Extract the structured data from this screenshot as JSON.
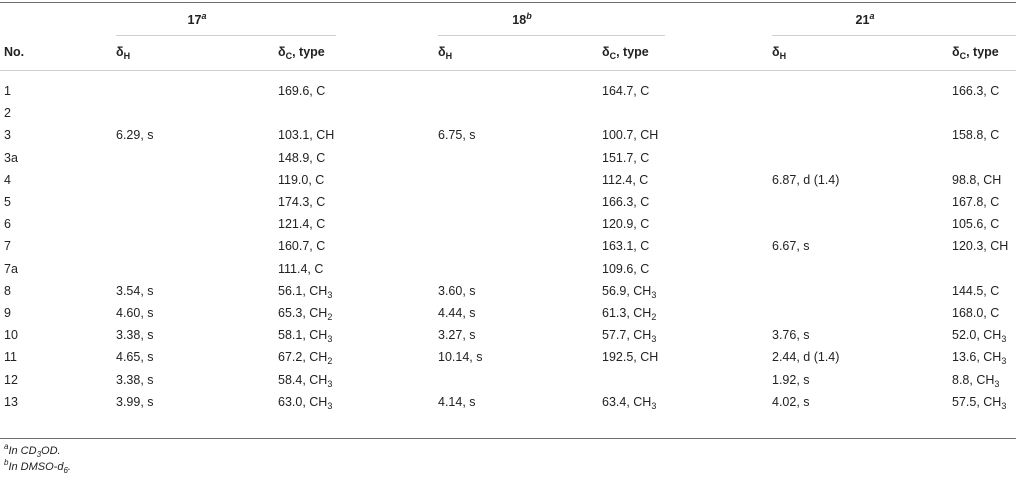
{
  "compounds": [
    {
      "number": "17",
      "footnote_mark": "a"
    },
    {
      "number": "18",
      "footnote_mark": "b"
    },
    {
      "number": "21",
      "footnote_mark": "a"
    }
  ],
  "headers": {
    "no": "No.",
    "dH": {
      "symbol": "δ",
      "sub": "H"
    },
    "dC": {
      "symbol": "δ",
      "sub": "C",
      "suffix": ", type"
    }
  },
  "rows": [
    {
      "no": "1",
      "cells": [
        [
          "",
          "169.6, C"
        ],
        [
          "",
          "164.7, C"
        ],
        [
          "",
          "166.3, C"
        ]
      ]
    },
    {
      "no": "2",
      "cells": [
        [
          "",
          ""
        ],
        [
          "",
          ""
        ],
        [
          "",
          ""
        ]
      ]
    },
    {
      "no": "3",
      "cells": [
        [
          "6.29, s",
          "103.1, CH"
        ],
        [
          "6.75, s",
          "100.7, CH"
        ],
        [
          "",
          "158.8, C"
        ]
      ]
    },
    {
      "no": "3a",
      "cells": [
        [
          "",
          "148.9, C"
        ],
        [
          "",
          "151.7, C"
        ],
        [
          "",
          ""
        ]
      ]
    },
    {
      "no": "4",
      "cells": [
        [
          "",
          "119.0, C"
        ],
        [
          "",
          "112.4, C"
        ],
        [
          "6.87, d (1.4)",
          "98.8, CH"
        ]
      ]
    },
    {
      "no": "5",
      "cells": [
        [
          "",
          "174.3, C"
        ],
        [
          "",
          "166.3, C"
        ],
        [
          "",
          "167.8, C"
        ]
      ]
    },
    {
      "no": "6",
      "cells": [
        [
          "",
          "121.4, C"
        ],
        [
          "",
          "120.9, C"
        ],
        [
          "",
          "105.6, C"
        ]
      ]
    },
    {
      "no": "7",
      "cells": [
        [
          "",
          "160.7, C"
        ],
        [
          "",
          "163.1, C"
        ],
        [
          "6.67, s",
          "120.3, CH"
        ]
      ]
    },
    {
      "no": "7a",
      "cells": [
        [
          "",
          "111.4, C"
        ],
        [
          "",
          "109.6, C"
        ],
        [
          "",
          ""
        ]
      ]
    },
    {
      "no": "8",
      "cells": [
        [
          "3.54, s",
          "56.1, CH3"
        ],
        [
          "3.60, s",
          "56.9, CH3"
        ],
        [
          "",
          "144.5, C"
        ]
      ]
    },
    {
      "no": "9",
      "cells": [
        [
          "4.60, s",
          "65.3, CH2"
        ],
        [
          "4.44, s",
          "61.3, CH2"
        ],
        [
          "",
          "168.0, C"
        ]
      ]
    },
    {
      "no": "10",
      "cells": [
        [
          "3.38, s",
          "58.1, CH3"
        ],
        [
          "3.27, s",
          "57.7, CH3"
        ],
        [
          "3.76, s",
          "52.0, CH3"
        ]
      ]
    },
    {
      "no": "11",
      "cells": [
        [
          "4.65, s",
          "67.2, CH2"
        ],
        [
          "10.14, s",
          "192.5, CH"
        ],
        [
          "2.44, d (1.4)",
          "13.6, CH3"
        ]
      ]
    },
    {
      "no": "12",
      "cells": [
        [
          "3.38, s",
          "58.4, CH3"
        ],
        [
          "",
          ""
        ],
        [
          "1.92, s",
          "8.8, CH3"
        ]
      ]
    },
    {
      "no": "13",
      "cells": [
        [
          "3.99, s",
          "63.0, CH3"
        ],
        [
          "4.14, s",
          "63.4, CH3"
        ],
        [
          "4.02, s",
          "57.5, CH3"
        ]
      ]
    }
  ],
  "footnotes": [
    {
      "mark": "a",
      "text": "In CD3OD."
    },
    {
      "mark": "b",
      "text": "In DMSO-d6."
    }
  ]
}
